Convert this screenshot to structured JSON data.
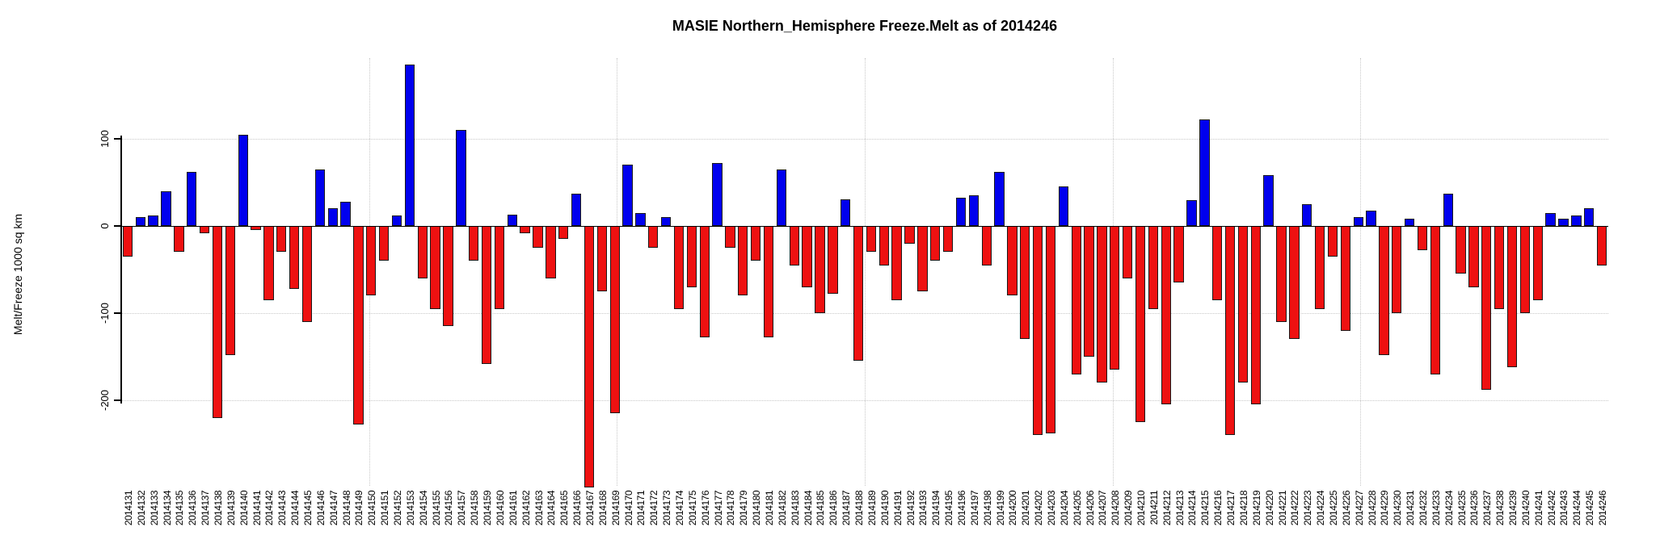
{
  "chart_data": {
    "type": "bar",
    "title": "MASIE Northern_Hemisphere Freeze.Melt as of 2014246",
    "xlabel": "",
    "ylabel": "Melt/Freeze 1000 sq km",
    "ylim": [
      -300,
      190
    ],
    "yticks": [
      100,
      0,
      -100,
      -200
    ],
    "grid": true,
    "legend": "none",
    "positive_color": "#0000EE",
    "negative_color": "#EE1111",
    "bar_border_color": "#1A1A1A",
    "categories": [
      "2014131",
      "2014132",
      "2014133",
      "2014134",
      "2014135",
      "2014136",
      "2014137",
      "2014138",
      "2014139",
      "2014140",
      "2014141",
      "2014142",
      "2014143",
      "2014144",
      "2014145",
      "2014146",
      "2014147",
      "2014148",
      "2014149",
      "2014150",
      "2014151",
      "2014152",
      "2014153",
      "2014154",
      "2014155",
      "2014156",
      "2014157",
      "2014158",
      "2014159",
      "2014160",
      "2014161",
      "2014162",
      "2014163",
      "2014164",
      "2014165",
      "2014166",
      "2014167",
      "2014168",
      "2014169",
      "2014170",
      "2014171",
      "2014172",
      "2014173",
      "2014174",
      "2014175",
      "2014176",
      "2014177",
      "2014178",
      "2014179",
      "2014180",
      "2014181",
      "2014182",
      "2014183",
      "2014184",
      "2014185",
      "2014186",
      "2014187",
      "2014188",
      "2014189",
      "2014190",
      "2014191",
      "2014192",
      "2014193",
      "2014194",
      "2014195",
      "2014196",
      "2014197",
      "2014198",
      "2014199",
      "2014200",
      "2014201",
      "2014202",
      "2014203",
      "2014204",
      "2014205",
      "2014206",
      "2014207",
      "2014208",
      "2014209",
      "2014210",
      "2014211",
      "2014212",
      "2014213",
      "2014214",
      "2014215",
      "2014216",
      "2014217",
      "2014218",
      "2014219",
      "2014220",
      "2014221",
      "2014222",
      "2014223",
      "2014224",
      "2014225",
      "2014226",
      "2014227",
      "2014228",
      "2014229",
      "2014230",
      "2014231",
      "2014232",
      "2014233",
      "2014234",
      "2014235",
      "2014236",
      "2014237",
      "2014238",
      "2014239",
      "2014240",
      "2014241",
      "2014242",
      "2014243",
      "2014244",
      "2014245",
      "2014246"
    ],
    "values": [
      -35,
      10,
      12,
      40,
      -30,
      62,
      -8,
      -220,
      -148,
      105,
      -5,
      -85,
      -30,
      -72,
      -110,
      65,
      20,
      28,
      -228,
      -80,
      -40,
      12,
      185,
      -60,
      -95,
      -115,
      110,
      -40,
      -158,
      -95,
      13,
      -8,
      -25,
      -60,
      -15,
      37,
      -300,
      -75,
      -215,
      70,
      15,
      -25,
      10,
      -95,
      -70,
      -128,
      72,
      -25,
      -80,
      -40,
      -128,
      65,
      -45,
      -70,
      -100,
      -78,
      31,
      -155,
      -30,
      -45,
      -85,
      -20,
      -75,
      -40,
      -30,
      32,
      35,
      -45,
      62,
      -80,
      -130,
      -240,
      -238,
      45,
      -170,
      -150,
      -180,
      -165,
      -60,
      -225,
      -95,
      -205,
      -65,
      30,
      122,
      -85,
      -240,
      -180,
      -205,
      58,
      -110,
      -130,
      25,
      -95,
      -35,
      -120,
      10,
      18,
      -148,
      -100,
      8,
      -28,
      -170,
      37,
      -55,
      -70,
      -188,
      -95,
      -162,
      -100,
      -85,
      15,
      8,
      12,
      20,
      -45
    ]
  }
}
